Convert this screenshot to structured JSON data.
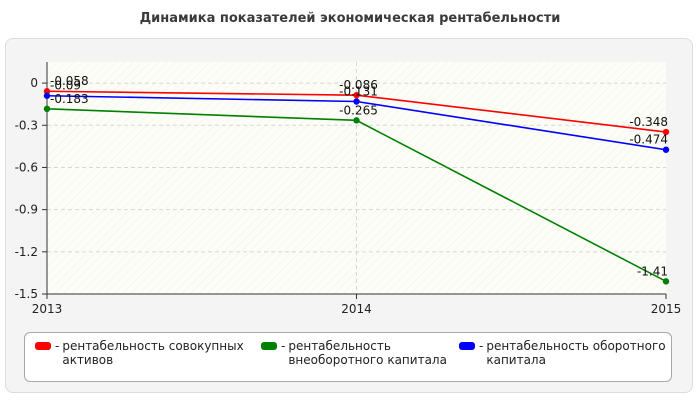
{
  "chart_data": {
    "type": "line",
    "title": "Динамика показателей экономическая рентабельности",
    "x": [
      "2013",
      "2014",
      "2015"
    ],
    "ylim": [
      -1.5,
      0.15
    ],
    "yticks": [
      0,
      -0.3,
      -0.6,
      -0.9,
      -1.2,
      -1.5
    ],
    "ytick_labels": [
      "0",
      "-0.3",
      "-0.6",
      "-0.9",
      "-1.2",
      "-1.5"
    ],
    "grid": true,
    "legend_position": "bottom",
    "series": [
      {
        "name": "рентабельность совокупных активов",
        "color": "#ff0000",
        "values": [
          -0.058,
          -0.086,
          -0.348
        ],
        "labels": [
          "-0.058",
          "-0.086",
          "-0.348"
        ]
      },
      {
        "name": "рентабельность внеоборотного капитала",
        "color": "#008000",
        "values": [
          -0.183,
          -0.265,
          -1.41
        ],
        "labels": [
          "-0.183",
          "-0.265",
          "-1.41"
        ]
      },
      {
        "name": "рентабельность оборотного капитала",
        "color": "#0000ff",
        "values": [
          -0.09,
          -0.131,
          -0.474
        ],
        "labels": [
          "-0.09",
          "-0.131",
          "-0.474"
        ]
      }
    ]
  },
  "legend": {
    "dash": "-",
    "items": [
      {
        "line1": "рентабельность совокупных",
        "line2": "активов",
        "color": "#ff0000"
      },
      {
        "line1": "рентабельность",
        "line2": "внеоборотного капитала",
        "color": "#008000"
      },
      {
        "line1": "рентабельность оборотного",
        "line2": "капитала",
        "color": "#0000ff"
      }
    ]
  }
}
